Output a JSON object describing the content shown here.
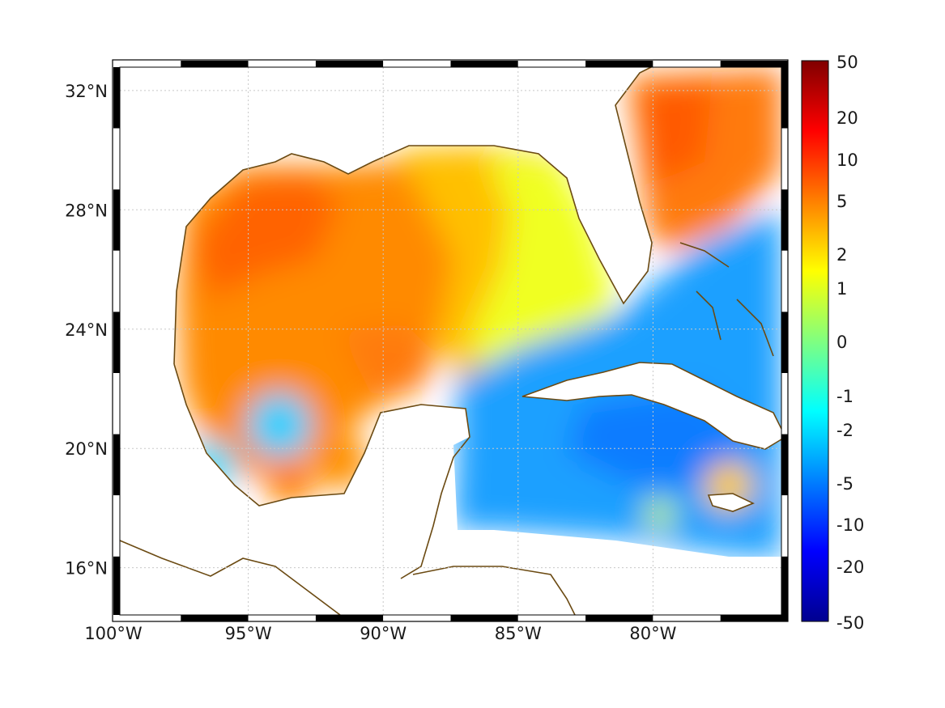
{
  "map": {
    "lon_range": [
      -100,
      -75
    ],
    "lat_range": [
      14.2,
      33.0
    ],
    "lon_ticks": [
      {
        "value": -100,
        "label": "100°W"
      },
      {
        "value": -95,
        "label": "95°W"
      },
      {
        "value": -90,
        "label": "90°W"
      },
      {
        "value": -85,
        "label": "85°W"
      },
      {
        "value": -80,
        "label": "80°W"
      }
    ],
    "lat_ticks": [
      {
        "value": 32,
        "label": "32°N"
      },
      {
        "value": 28,
        "label": "28°N"
      },
      {
        "value": 24,
        "label": "24°N"
      },
      {
        "value": 20,
        "label": "20°N"
      },
      {
        "value": 16,
        "label": "16°N"
      }
    ],
    "grid": true,
    "frame": "alternating black-white ticked border",
    "coastline_color": "#6b4a12",
    "land_color": "#ffffff"
  },
  "colorbar": {
    "placement": "right",
    "colormap": "jet",
    "ticks": [
      "50",
      "20",
      "10",
      "5",
      "2",
      "1",
      "0",
      "-1",
      "-2",
      "-5",
      "-10",
      "-20",
      "-50"
    ]
  }
}
